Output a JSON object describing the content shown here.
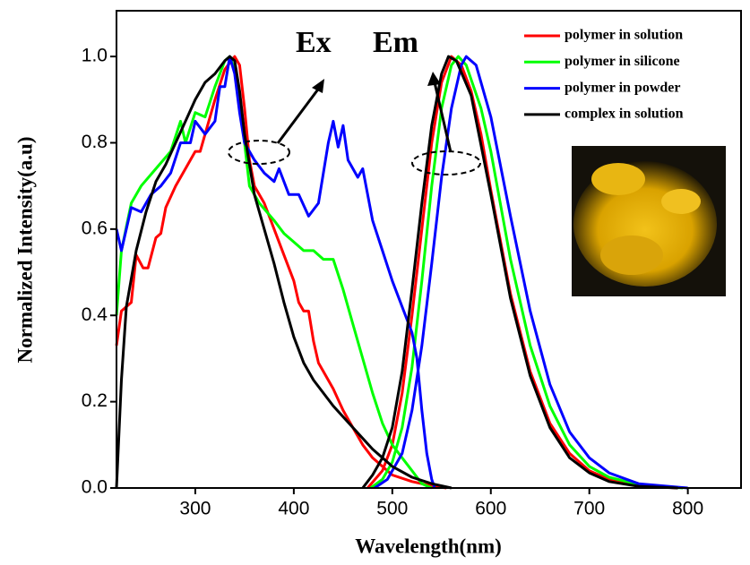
{
  "chart_data": {
    "type": "line",
    "xlabel": "Wavelength(nm)",
    "ylabel": "Normalized Intensity(a.u)",
    "annotations": [
      "Ex",
      "Em"
    ],
    "xlim": [
      220,
      854
    ],
    "xticks": [
      300,
      400,
      500,
      600,
      700,
      800
    ],
    "ylim": [
      0,
      1.106
    ],
    "yticks": [
      {
        "value": 0,
        "label": "0.0"
      },
      0.2,
      0.4,
      0.6,
      0.8,
      {
        "value": 1,
        "label": "1.0"
      }
    ],
    "legend": "upper right",
    "series": [
      {
        "name": "polymer in solution",
        "color": "#ff0000",
        "x": [
          220,
          225,
          235,
          240,
          247,
          252,
          260,
          265,
          270,
          280,
          290,
          300,
          305,
          310,
          320,
          330,
          340,
          345,
          350,
          355,
          360,
          370,
          380,
          390,
          400,
          405,
          410,
          415,
          420,
          425,
          430,
          440,
          450,
          460,
          470,
          480,
          490,
          500,
          520,
          540,
          555,
          null,
          475,
          490,
          500,
          510,
          520,
          530,
          540,
          550,
          560,
          570,
          580,
          590,
          600,
          620,
          640,
          660,
          680,
          700,
          720,
          750,
          790
        ],
        "values": [
          0.33,
          0.41,
          0.43,
          0.54,
          0.51,
          0.51,
          0.58,
          0.59,
          0.65,
          0.7,
          0.74,
          0.78,
          0.78,
          0.82,
          0.9,
          0.97,
          1.0,
          0.98,
          0.88,
          0.76,
          0.7,
          0.66,
          0.6,
          0.54,
          0.48,
          0.43,
          0.41,
          0.41,
          0.34,
          0.29,
          0.27,
          0.23,
          0.18,
          0.14,
          0.1,
          0.07,
          0.05,
          0.03,
          0.015,
          0.005,
          0,
          null,
          0,
          0.04,
          0.1,
          0.22,
          0.4,
          0.6,
          0.8,
          0.94,
          1.0,
          0.98,
          0.92,
          0.82,
          0.69,
          0.45,
          0.27,
          0.15,
          0.08,
          0.04,
          0.02,
          0.005,
          0
        ]
      },
      {
        "name": "polymer in silicone",
        "color": "#00ff00",
        "x": [
          220,
          225,
          235,
          245,
          260,
          275,
          285,
          290,
          300,
          310,
          320,
          330,
          335,
          340,
          350,
          355,
          365,
          380,
          390,
          400,
          410,
          420,
          430,
          440,
          450,
          460,
          470,
          480,
          490,
          500,
          510,
          520,
          530,
          540,
          null,
          478,
          490,
          500,
          510,
          520,
          530,
          540,
          550,
          560,
          567,
          575,
          590,
          600,
          620,
          640,
          660,
          680,
          700,
          720,
          750,
          795
        ],
        "values": [
          0.4,
          0.55,
          0.66,
          0.7,
          0.74,
          0.78,
          0.85,
          0.8,
          0.87,
          0.86,
          0.93,
          0.99,
          1.0,
          0.97,
          0.8,
          0.7,
          0.66,
          0.62,
          0.59,
          0.57,
          0.55,
          0.55,
          0.53,
          0.53,
          0.46,
          0.38,
          0.3,
          0.22,
          0.15,
          0.1,
          0.07,
          0.04,
          0.01,
          0,
          null,
          0,
          0.02,
          0.06,
          0.14,
          0.28,
          0.48,
          0.7,
          0.88,
          0.98,
          1.0,
          0.98,
          0.88,
          0.78,
          0.53,
          0.33,
          0.19,
          0.1,
          0.05,
          0.025,
          0.008,
          0
        ]
      },
      {
        "name": "polymer in powder",
        "color": "#0000ff",
        "x": [
          220,
          225,
          235,
          245,
          255,
          265,
          275,
          285,
          295,
          300,
          310,
          320,
          325,
          330,
          335,
          340,
          345,
          350,
          360,
          370,
          380,
          385,
          395,
          405,
          415,
          425,
          435,
          440,
          445,
          450,
          455,
          465,
          470,
          480,
          490,
          500,
          510,
          520,
          525,
          530,
          535,
          540,
          543,
          null,
          482,
          495,
          510,
          520,
          530,
          540,
          550,
          560,
          570,
          575,
          585,
          600,
          620,
          640,
          660,
          680,
          700,
          720,
          750,
          800
        ],
        "values": [
          0.6,
          0.55,
          0.65,
          0.64,
          0.68,
          0.7,
          0.73,
          0.8,
          0.8,
          0.85,
          0.82,
          0.85,
          0.93,
          0.93,
          1.0,
          0.96,
          0.87,
          0.8,
          0.76,
          0.73,
          0.71,
          0.74,
          0.68,
          0.68,
          0.63,
          0.66,
          0.8,
          0.85,
          0.79,
          0.84,
          0.76,
          0.72,
          0.74,
          0.62,
          0.55,
          0.48,
          0.42,
          0.36,
          0.3,
          0.18,
          0.08,
          0.02,
          0,
          null,
          0,
          0.02,
          0.08,
          0.18,
          0.33,
          0.52,
          0.72,
          0.88,
          0.98,
          1.0,
          0.98,
          0.86,
          0.63,
          0.41,
          0.24,
          0.13,
          0.07,
          0.035,
          0.01,
          0
        ]
      },
      {
        "name": "complex in solution",
        "color": "#000000",
        "x": [
          220,
          225,
          230,
          240,
          250,
          260,
          270,
          280,
          290,
          300,
          310,
          320,
          330,
          335,
          340,
          345,
          350,
          360,
          370,
          380,
          390,
          400,
          410,
          420,
          440,
          460,
          480,
          500,
          520,
          540,
          560,
          null,
          470,
          480,
          490,
          500,
          510,
          520,
          530,
          540,
          550,
          557,
          565,
          580,
          600,
          620,
          640,
          660,
          680,
          700,
          720,
          750,
          790
        ],
        "values": [
          0.0,
          0.25,
          0.42,
          0.55,
          0.64,
          0.71,
          0.75,
          0.8,
          0.85,
          0.9,
          0.94,
          0.96,
          0.99,
          1.0,
          0.99,
          0.92,
          0.82,
          0.68,
          0.6,
          0.52,
          0.43,
          0.35,
          0.29,
          0.25,
          0.19,
          0.14,
          0.09,
          0.05,
          0.025,
          0.01,
          0,
          null,
          0,
          0.03,
          0.07,
          0.14,
          0.27,
          0.46,
          0.66,
          0.84,
          0.96,
          1.0,
          0.99,
          0.91,
          0.68,
          0.44,
          0.26,
          0.14,
          0.07,
          0.035,
          0.015,
          0.004,
          0
        ]
      }
    ]
  }
}
